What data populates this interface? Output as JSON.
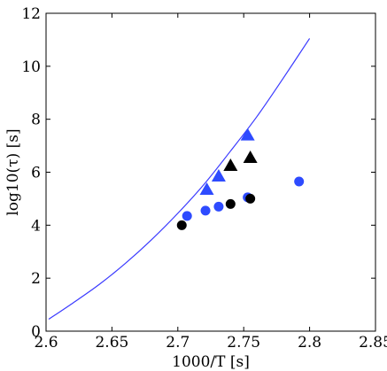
{
  "chart_data": {
    "type": "scatter",
    "title": "",
    "xlabel": "1000/T [s]",
    "ylabel": "log10(τ) [s]",
    "xlim": [
      2.6,
      2.85
    ],
    "ylim": [
      0,
      12
    ],
    "x_ticks": [
      "2.6",
      "2.65",
      "2.7",
      "2.75",
      "2.8",
      "2.85"
    ],
    "y_ticks": [
      "0",
      "2",
      "4",
      "6",
      "8",
      "10",
      "12"
    ],
    "grid": false,
    "legend": "none",
    "series": [
      {
        "marker": "line",
        "color": "#3a3aff",
        "x": [
          2.602,
          2.62,
          2.64,
          2.66,
          2.68,
          2.7,
          2.72,
          2.74,
          2.76,
          2.78,
          2.8
        ],
        "y": [
          0.45,
          1.05,
          1.75,
          2.55,
          3.45,
          4.45,
          5.55,
          6.8,
          8.1,
          9.55,
          11.05
        ]
      },
      {
        "marker": "triangle",
        "color": "#2e4bff",
        "x": [
          2.722,
          2.731,
          2.753
        ],
        "y": [
          5.35,
          5.85,
          7.4
        ]
      },
      {
        "marker": "triangle",
        "color": "#000000",
        "x": [
          2.74,
          2.755
        ],
        "y": [
          6.25,
          6.55
        ]
      },
      {
        "marker": "circle",
        "color": "#2e4bff",
        "x": [
          2.707,
          2.721,
          2.731,
          2.753,
          2.792
        ],
        "y": [
          4.35,
          4.55,
          4.7,
          5.05,
          5.65
        ]
      },
      {
        "marker": "circle",
        "color": "#000000",
        "x": [
          2.703,
          2.74,
          2.755
        ],
        "y": [
          4.0,
          4.8,
          5.0
        ]
      }
    ]
  }
}
